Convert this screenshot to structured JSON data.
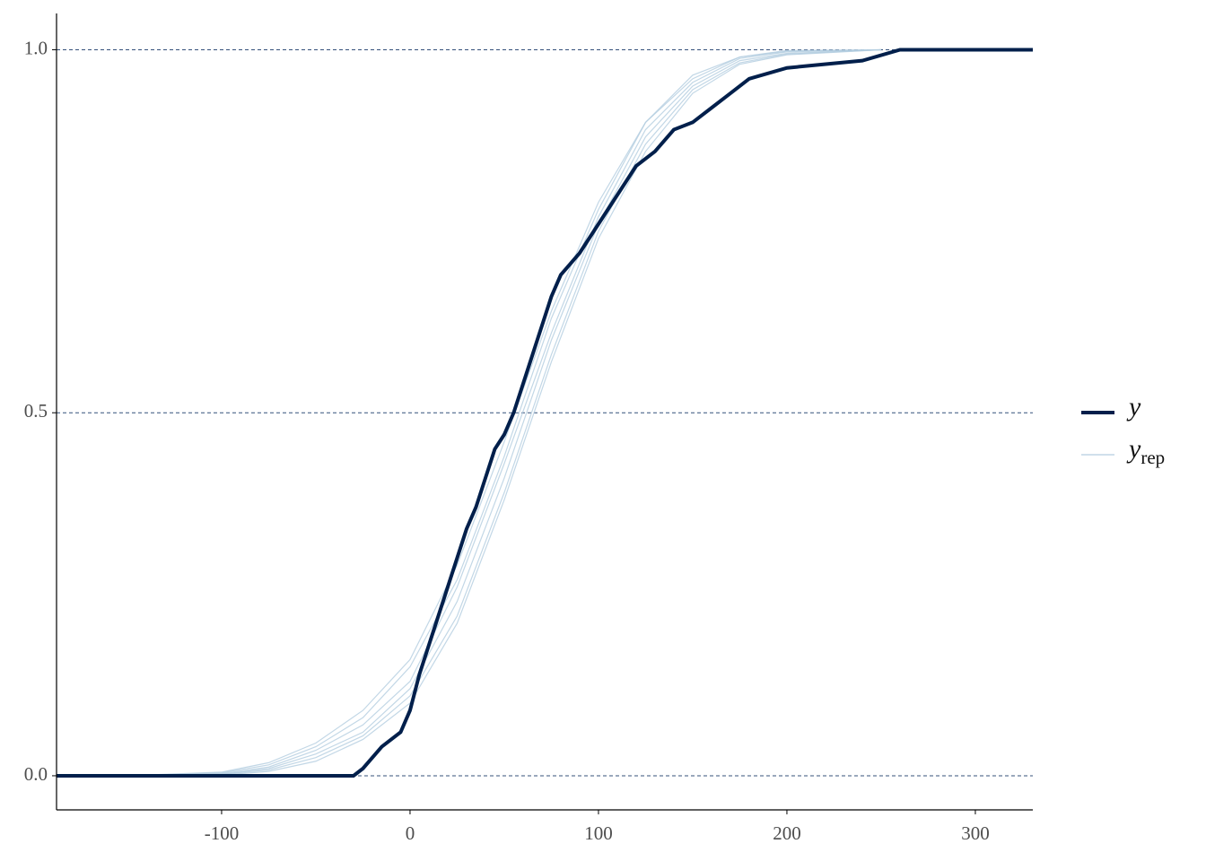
{
  "chart_data": {
    "type": "line",
    "xlim": [
      -187.6,
      330.5
    ],
    "ylim": [
      -0.047,
      1.05
    ],
    "xticks": [
      -100,
      0,
      100,
      200,
      300
    ],
    "yticks": [
      {
        "value": 0,
        "label": "0.0"
      },
      {
        "value": 0.5,
        "label": "0.5"
      },
      {
        "value": 1,
        "label": "1.0"
      }
    ],
    "grid": true,
    "legend": "right",
    "series": [
      {
        "name": "y",
        "color": "#011f4b",
        "x": [
          -187.6,
          -30,
          -25,
          -15,
          -5,
          0,
          5,
          10,
          15,
          20,
          25,
          30,
          35,
          40,
          45,
          50,
          55,
          60,
          65,
          70,
          75,
          80,
          90,
          100,
          110,
          120,
          130,
          140,
          150,
          160,
          170,
          180,
          200,
          220,
          240,
          260,
          330.5
        ],
        "values": [
          0,
          0,
          0.01,
          0.04,
          0.06,
          0.09,
          0.14,
          0.18,
          0.22,
          0.26,
          0.3,
          0.34,
          0.37,
          0.41,
          0.45,
          0.47,
          0.5,
          0.54,
          0.58,
          0.62,
          0.66,
          0.69,
          0.72,
          0.76,
          0.8,
          0.84,
          0.86,
          0.89,
          0.9,
          0.92,
          0.94,
          0.96,
          0.975,
          0.98,
          0.985,
          1,
          1
        ]
      },
      {
        "name": "y",
        "subscript": "rep",
        "color": "#b3cde0",
        "x": [
          -150,
          -100,
          -75,
          -50,
          -25,
          0,
          25,
          50,
          75,
          100,
          125,
          150,
          175,
          200,
          250
        ],
        "lines": [
          [
            0,
            0.002,
            0.01,
            0.03,
            0.06,
            0.12,
            0.24,
            0.41,
            0.6,
            0.76,
            0.88,
            0.95,
            0.985,
            0.995,
            1
          ],
          [
            0,
            0.004,
            0.015,
            0.04,
            0.08,
            0.15,
            0.27,
            0.44,
            0.63,
            0.78,
            0.9,
            0.96,
            0.99,
            0.998,
            1
          ],
          [
            0,
            0.001,
            0.006,
            0.02,
            0.05,
            0.1,
            0.21,
            0.38,
            0.57,
            0.74,
            0.86,
            0.94,
            0.98,
            0.993,
            1
          ],
          [
            0,
            0.003,
            0.012,
            0.035,
            0.07,
            0.13,
            0.26,
            0.43,
            0.61,
            0.77,
            0.89,
            0.955,
            0.988,
            0.997,
            1
          ],
          [
            0,
            0.002,
            0.008,
            0.025,
            0.055,
            0.11,
            0.22,
            0.39,
            0.58,
            0.75,
            0.87,
            0.945,
            0.982,
            0.994,
            1
          ],
          [
            0,
            0.005,
            0.018,
            0.045,
            0.09,
            0.16,
            0.29,
            0.46,
            0.64,
            0.79,
            0.9,
            0.965,
            0.99,
            0.999,
            1
          ]
        ]
      }
    ]
  }
}
